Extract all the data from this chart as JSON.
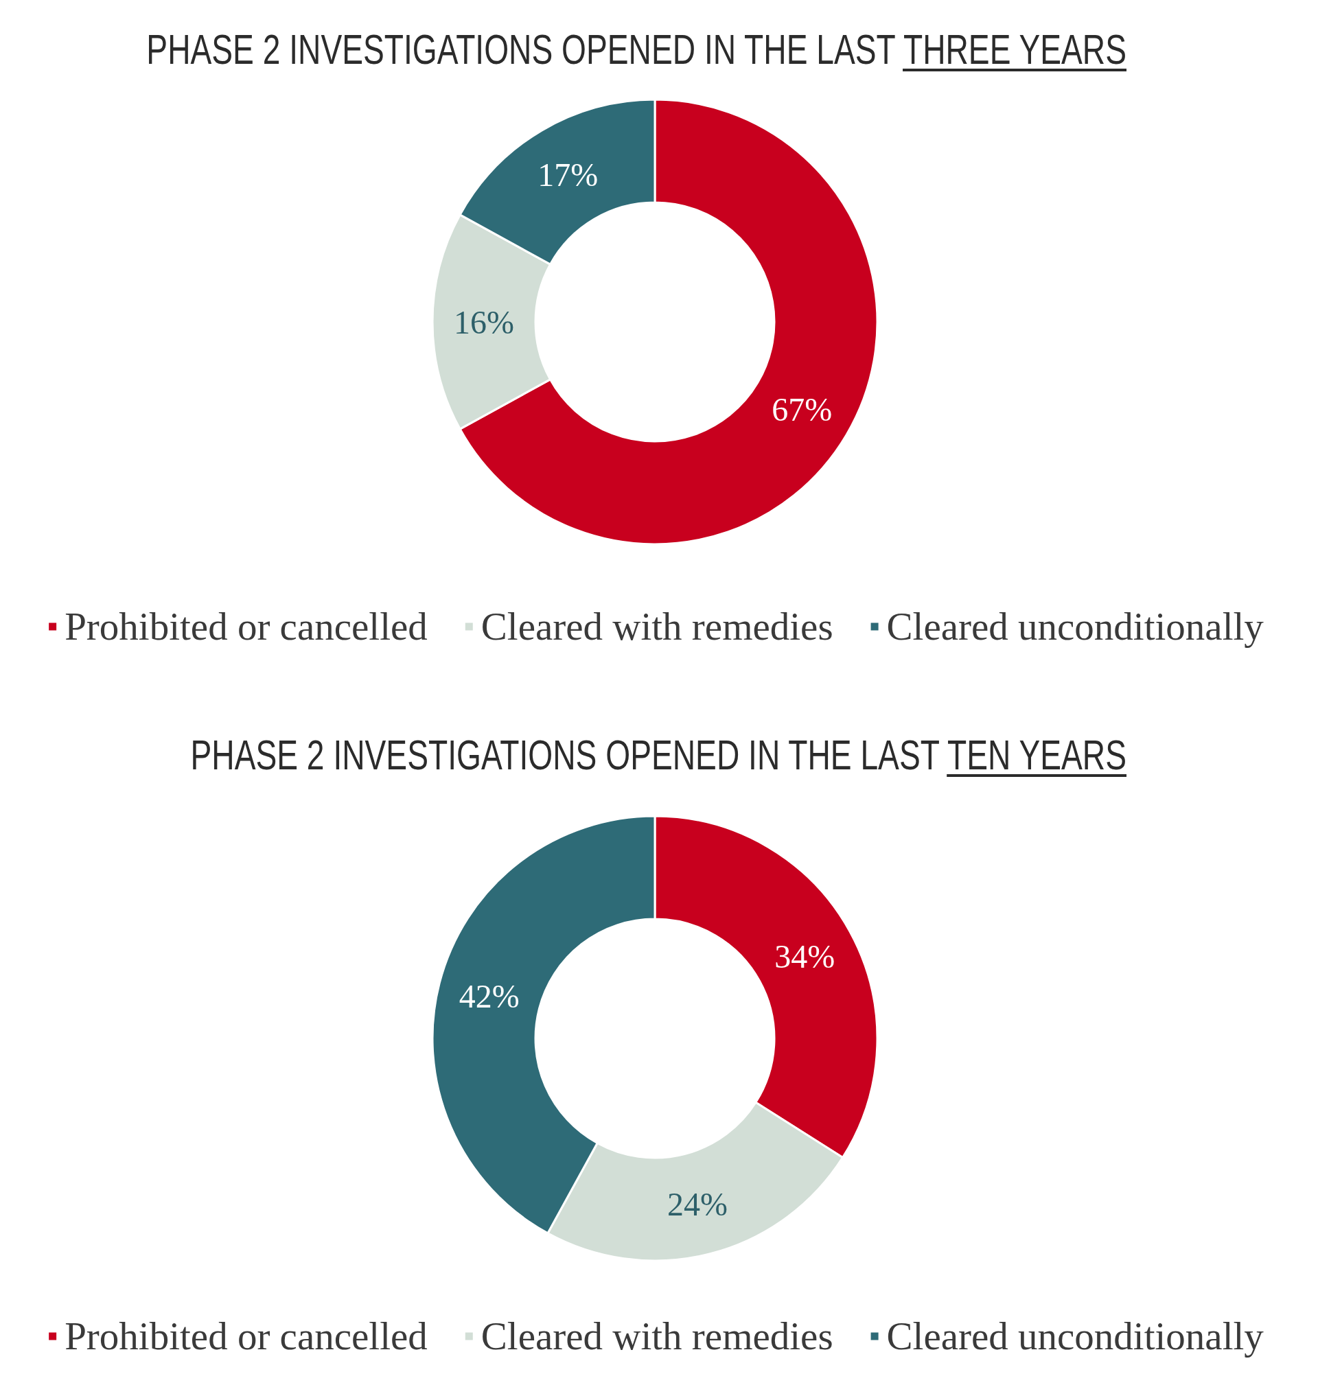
{
  "chart_data": [
    {
      "type": "donut",
      "title": "PHASE 2 INVESTIGATIONS OPENED IN THE LAST THREE YEARS",
      "categories": [
        "Prohibited or cancelled",
        "Cleared with remedies",
        "Cleared unconditionally"
      ],
      "values": [
        67,
        16,
        17
      ],
      "value_labels": [
        "67%",
        "16%",
        "17%"
      ],
      "colors": [
        "#c8001e",
        "#d2ded6",
        "#2e6b77"
      ],
      "legend": "bottom"
    },
    {
      "type": "donut",
      "title": "PHASE 2 INVESTIGATIONS OPENED IN THE LAST TEN YEARS",
      "categories": [
        "Prohibited or cancelled",
        "Cleared with remedies",
        "Cleared unconditionally"
      ],
      "values": [
        34,
        24,
        42
      ],
      "value_labels": [
        "34%",
        "24%",
        "42%"
      ],
      "colors": [
        "#c8001e",
        "#d2ded6",
        "#2e6b77"
      ],
      "legend": "bottom"
    }
  ]
}
